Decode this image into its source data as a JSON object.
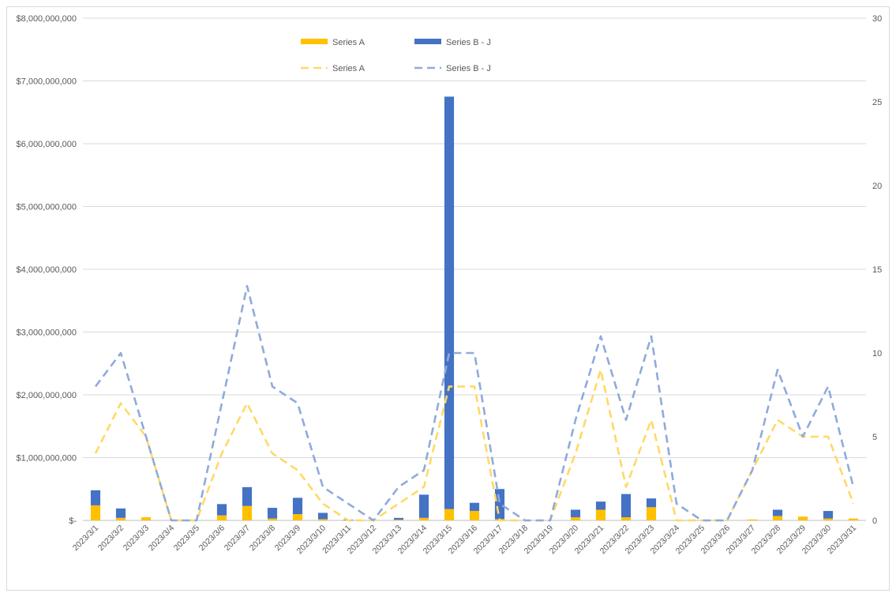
{
  "chart_data": {
    "type": "bar",
    "subtype": "stacked bar with lines on secondary axis",
    "title": "",
    "xlabel": "",
    "ylabel": "",
    "categories": [
      "2023/3/1",
      "2023/3/2",
      "2023/3/3",
      "2023/3/4",
      "2023/3/5",
      "2023/3/6",
      "2023/3/7",
      "2023/3/8",
      "2023/3/9",
      "2023/3/10",
      "2023/3/11",
      "2023/3/12",
      "2023/3/13",
      "2023/3/14",
      "2023/3/15",
      "2023/3/16",
      "2023/3/17",
      "2023/3/18",
      "2023/3/19",
      "2023/3/20",
      "2023/3/21",
      "2023/3/22",
      "2023/3/23",
      "2023/3/24",
      "2023/3/25",
      "2023/3/26",
      "2023/3/27",
      "2023/3/28",
      "2023/3/29",
      "2023/3/30",
      "2023/3/31"
    ],
    "ylim": [
      0,
      8000000000
    ],
    "y2lim": [
      0,
      30
    ],
    "y_ticks": [
      "$-",
      "$1,000,000,000",
      "$2,000,000,000",
      "$3,000,000,000",
      "$4,000,000,000",
      "$5,000,000,000",
      "$6,000,000,000",
      "$7,000,000,000",
      "$8,000,000,000"
    ],
    "y2_ticks": [
      "0",
      "5",
      "10",
      "15",
      "20",
      "25",
      "30"
    ],
    "grid": true,
    "legend_position": "top-center",
    "bars": [
      {
        "name": "Series A",
        "color": "#FFC000",
        "values": [
          240000000,
          40000000,
          50000000,
          0,
          0,
          80000000,
          230000000,
          30000000,
          100000000,
          20000000,
          0,
          0,
          10000000,
          40000000,
          180000000,
          150000000,
          20000000,
          0,
          0,
          50000000,
          170000000,
          50000000,
          210000000,
          5000000,
          0,
          0,
          15000000,
          70000000,
          60000000,
          30000000,
          30000000
        ]
      },
      {
        "name": "Series B - J",
        "color": "#4472C4",
        "values": [
          240000000,
          150000000,
          0,
          0,
          0,
          180000000,
          300000000,
          170000000,
          260000000,
          100000000,
          10000000,
          0,
          30000000,
          370000000,
          6570000000,
          130000000,
          480000000,
          0,
          0,
          120000000,
          130000000,
          370000000,
          140000000,
          0,
          0,
          0,
          0,
          100000000,
          0,
          120000000,
          0
        ]
      }
    ],
    "lines": [
      {
        "name": "Series A",
        "color": "#FFD966",
        "axis": "secondary",
        "values": [
          4,
          7,
          5,
          0,
          0,
          4,
          7,
          4,
          3,
          1,
          0,
          0,
          1,
          2,
          8,
          8,
          0,
          0,
          0,
          4,
          9,
          2,
          6,
          0,
          0,
          0,
          3,
          6,
          5,
          5,
          1
        ]
      },
      {
        "name": "Series B - J",
        "color": "#8FAADC",
        "axis": "secondary",
        "values": [
          8,
          10,
          5,
          0,
          0,
          7,
          14,
          8,
          7,
          2,
          1,
          0,
          2,
          3,
          10,
          10,
          1,
          0,
          0,
          6,
          11,
          6,
          11,
          1,
          0,
          0,
          3,
          9,
          5,
          8,
          2
        ]
      }
    ]
  }
}
